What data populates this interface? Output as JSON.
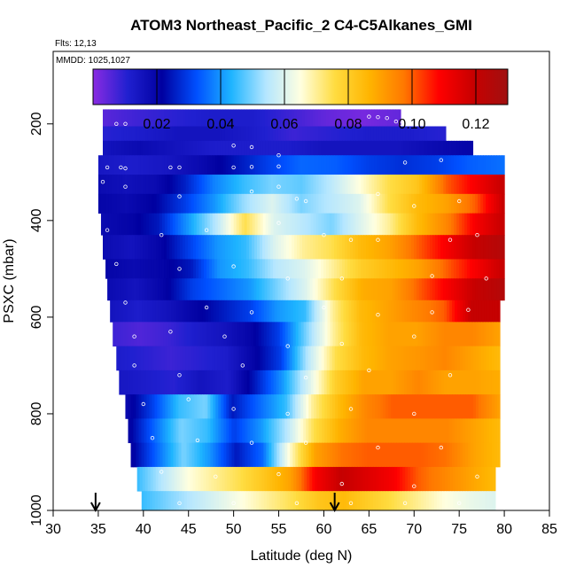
{
  "chart_data": {
    "type": "heatmap",
    "title": "ATOM3 Northeast_Pacific_2 C4-C5Alkanes_GMI",
    "flights_label": "Flts: 12,13",
    "dates_label": "MMDD: 1025,1027",
    "xlabel": "Latitude (deg N)",
    "ylabel": "PSXC (mbar)",
    "xlim": [
      30,
      85
    ],
    "ylim": [
      1000,
      50
    ],
    "y_reversed": true,
    "x_ticks": [
      30,
      35,
      40,
      45,
      50,
      55,
      60,
      65,
      70,
      75,
      80,
      85
    ],
    "y_ticks": [
      200,
      400,
      600,
      800,
      1000
    ],
    "colorbar": {
      "min": 0.0,
      "max": 0.13,
      "ticks": [
        0.02,
        0.04,
        0.06,
        0.08,
        0.1,
        0.12
      ],
      "tick_labels": [
        "0.02",
        "0.04",
        "0.06",
        "0.08",
        "0.10",
        "0.12"
      ],
      "colors": [
        "#8a2be2",
        "#2020d0",
        "#0000a0",
        "#0050ff",
        "#1eb4ff",
        "#b4e6ff",
        "#ffffe0",
        "#ffdc40",
        "#ffb400",
        "#ff7800",
        "#ff0000",
        "#c80000",
        "#a01010"
      ]
    },
    "markers": [
      34.7,
      61.2
    ],
    "bands": [
      {
        "p_top": 170,
        "p_bot": 205,
        "lat_start": 35.5,
        "values": [
          0.005,
          0.008,
          0.01,
          0.012,
          0.012,
          0.008,
          0.004,
          0.002,
          0.004
        ]
      },
      {
        "p_top": 205,
        "p_bot": 235,
        "lat_start": 35.5,
        "values": [
          0.01,
          0.012,
          0.015,
          0.015,
          0.012,
          0.008,
          0.01,
          0.012,
          0.012,
          0.01
        ]
      },
      {
        "p_top": 235,
        "p_bot": 265,
        "lat_start": 35.5,
        "values": [
          0.015,
          0.018,
          0.015,
          0.012,
          0.012,
          0.012,
          0.015,
          0.015,
          0.015,
          0.018,
          0.02
        ]
      },
      {
        "p_top": 265,
        "p_bot": 305,
        "lat_start": 35.0,
        "values": [
          0.014,
          0.012,
          0.014,
          0.018,
          0.024,
          0.03,
          0.035,
          0.034,
          0.03,
          0.028,
          0.03,
          0.034,
          0.036
        ]
      },
      {
        "p_top": 305,
        "p_bot": 345,
        "lat_start": 35.0,
        "values": [
          0.018,
          0.016,
          0.018,
          0.026,
          0.038,
          0.045,
          0.05,
          0.048,
          0.055,
          0.065,
          0.075,
          0.082,
          0.1,
          0.11,
          0.12
        ]
      },
      {
        "p_top": 345,
        "p_bot": 385,
        "lat_start": 35.0,
        "values": [
          0.02,
          0.018,
          0.022,
          0.03,
          0.04,
          0.052,
          0.06,
          0.05,
          0.055,
          0.06,
          0.075,
          0.085,
          0.09,
          0.1,
          0.12
        ]
      },
      {
        "p_top": 385,
        "p_bot": 430,
        "lat_start": 35.3,
        "values": [
          0.018,
          0.02,
          0.025,
          0.04,
          0.055,
          0.075,
          0.06,
          0.055,
          0.05,
          0.06,
          0.07,
          0.085,
          0.095,
          0.11,
          0.12
        ]
      },
      {
        "p_top": 430,
        "p_bot": 480,
        "lat_start": 35.5,
        "values": [
          0.018,
          0.015,
          0.02,
          0.03,
          0.04,
          0.045,
          0.06,
          0.07,
          0.075,
          0.085,
          0.09,
          0.1,
          0.11,
          0.12,
          0.125
        ]
      },
      {
        "p_top": 480,
        "p_bot": 520,
        "lat_start": 35.8,
        "values": [
          0.02,
          0.018,
          0.02,
          0.025,
          0.04,
          0.045,
          0.055,
          0.06,
          0.07,
          0.08,
          0.085,
          0.09,
          0.1,
          0.11,
          0.12
        ]
      },
      {
        "p_top": 520,
        "p_bot": 565,
        "lat_start": 36.0,
        "values": [
          0.018,
          0.015,
          0.02,
          0.03,
          0.035,
          0.04,
          0.05,
          0.06,
          0.075,
          0.088,
          0.09,
          0.1,
          0.11,
          0.12,
          0.125
        ]
      },
      {
        "p_top": 565,
        "p_bot": 610,
        "lat_start": 36.3,
        "values": [
          0.015,
          0.012,
          0.015,
          0.02,
          0.025,
          0.03,
          0.04,
          0.045,
          0.07,
          0.085,
          0.09,
          0.095,
          0.1,
          0.12,
          0.12
        ]
      },
      {
        "p_top": 610,
        "p_bot": 660,
        "lat_start": 36.6,
        "values": [
          0.008,
          0.006,
          0.008,
          0.012,
          0.015,
          0.02,
          0.03,
          0.05,
          0.07,
          0.085,
          0.09,
          0.09,
          0.095,
          0.095,
          0.09
        ]
      },
      {
        "p_top": 660,
        "p_bot": 710,
        "lat_start": 37.0,
        "values": [
          0.012,
          0.01,
          0.008,
          0.01,
          0.012,
          0.02,
          0.03,
          0.055,
          0.075,
          0.085,
          0.09,
          0.092,
          0.095,
          0.09,
          0.085
        ]
      },
      {
        "p_top": 710,
        "p_bot": 760,
        "lat_start": 37.3,
        "values": [
          0.014,
          0.012,
          0.01,
          0.015,
          0.012,
          0.025,
          0.04,
          0.06,
          0.08,
          0.09,
          0.09,
          0.095,
          0.09,
          0.09,
          0.088
        ]
      },
      {
        "p_top": 760,
        "p_bot": 810,
        "lat_start": 38.0,
        "values": [
          0.018,
          0.03,
          0.045,
          0.05,
          0.025,
          0.035,
          0.045,
          0.07,
          0.085,
          0.095,
          0.1,
          0.1,
          0.1,
          0.1,
          0.09
        ]
      },
      {
        "p_top": 810,
        "p_bot": 860,
        "lat_start": 38.3,
        "values": [
          0.02,
          0.035,
          0.05,
          0.045,
          0.03,
          0.04,
          0.055,
          0.075,
          0.088,
          0.095,
          0.095,
          0.095,
          0.095,
          0.09,
          0.085
        ]
      },
      {
        "p_top": 860,
        "p_bot": 910,
        "lat_start": 38.6,
        "values": [
          0.02,
          0.035,
          0.05,
          0.04,
          0.025,
          0.035,
          0.065,
          0.09,
          0.098,
          0.1,
          0.1,
          0.1,
          0.098,
          0.09,
          0.085
        ]
      },
      {
        "p_top": 910,
        "p_bot": 960,
        "lat_start": 39.3,
        "values": [
          0.045,
          0.055,
          0.065,
          0.07,
          0.075,
          0.082,
          0.09,
          0.11,
          0.12,
          0.115,
          0.11,
          0.1,
          0.095,
          0.09,
          0.085
        ]
      },
      {
        "p_top": 960,
        "p_bot": 1000,
        "lat_start": 39.8,
        "values": [
          0.045,
          0.05,
          0.055,
          0.06,
          0.065,
          0.07,
          0.075,
          0.082,
          0.085,
          0.08,
          0.075,
          0.07,
          0.065,
          0.062,
          0.06
        ]
      }
    ],
    "band_lat_end": [
      68.5,
      73.5,
      76.5,
      80.0,
      80.0,
      80.0,
      80.0,
      80.0,
      80.0,
      80.0,
      79.5,
      79.5,
      79.5,
      79.5,
      79.5,
      79.5,
      79.5,
      79.0,
      79.0
    ],
    "points": [
      [
        37,
        200
      ],
      [
        38,
        200
      ],
      [
        65,
        185
      ],
      [
        66,
        186
      ],
      [
        67,
        188
      ],
      [
        68,
        195
      ],
      [
        68.5,
        200
      ],
      [
        50,
        245
      ],
      [
        52,
        248
      ],
      [
        55,
        265
      ],
      [
        36,
        290
      ],
      [
        37.5,
        290
      ],
      [
        38,
        292
      ],
      [
        43,
        290
      ],
      [
        44,
        290
      ],
      [
        50,
        290
      ],
      [
        52,
        289
      ],
      [
        55,
        288
      ],
      [
        69,
        280
      ],
      [
        73,
        275
      ],
      [
        35.5,
        320
      ],
      [
        38,
        330
      ],
      [
        44,
        350
      ],
      [
        52,
        340
      ],
      [
        55,
        330
      ],
      [
        57,
        355
      ],
      [
        58,
        360
      ],
      [
        66,
        345
      ],
      [
        70,
        370
      ],
      [
        75,
        360
      ],
      [
        36,
        420
      ],
      [
        42,
        430
      ],
      [
        47,
        420
      ],
      [
        55,
        405
      ],
      [
        60,
        430
      ],
      [
        63,
        440
      ],
      [
        66,
        440
      ],
      [
        74,
        440
      ],
      [
        77,
        430
      ],
      [
        37,
        490
      ],
      [
        44,
        500
      ],
      [
        50,
        495
      ],
      [
        56,
        520
      ],
      [
        62,
        520
      ],
      [
        72,
        515
      ],
      [
        78,
        520
      ],
      [
        38,
        570
      ],
      [
        47,
        580
      ],
      [
        52,
        590
      ],
      [
        60,
        580
      ],
      [
        66,
        595
      ],
      [
        72,
        590
      ],
      [
        76,
        585
      ],
      [
        39,
        640
      ],
      [
        43,
        630
      ],
      [
        49,
        640
      ],
      [
        56,
        660
      ],
      [
        62,
        655
      ],
      [
        70,
        640
      ],
      [
        39,
        700
      ],
      [
        44,
        720
      ],
      [
        51,
        700
      ],
      [
        58,
        725
      ],
      [
        65,
        710
      ],
      [
        74,
        720
      ],
      [
        40,
        780
      ],
      [
        45,
        770
      ],
      [
        50,
        790
      ],
      [
        56,
        800
      ],
      [
        63,
        790
      ],
      [
        70,
        800
      ],
      [
        41,
        850
      ],
      [
        46,
        855
      ],
      [
        52,
        860
      ],
      [
        58,
        860
      ],
      [
        66,
        870
      ],
      [
        73,
        870
      ],
      [
        42,
        920
      ],
      [
        48,
        930
      ],
      [
        55,
        925
      ],
      [
        62,
        945
      ],
      [
        70,
        950
      ],
      [
        77,
        930
      ],
      [
        44,
        985
      ],
      [
        50,
        985
      ],
      [
        57,
        985
      ],
      [
        63,
        985
      ],
      [
        69,
        985
      ],
      [
        75,
        985
      ]
    ]
  }
}
